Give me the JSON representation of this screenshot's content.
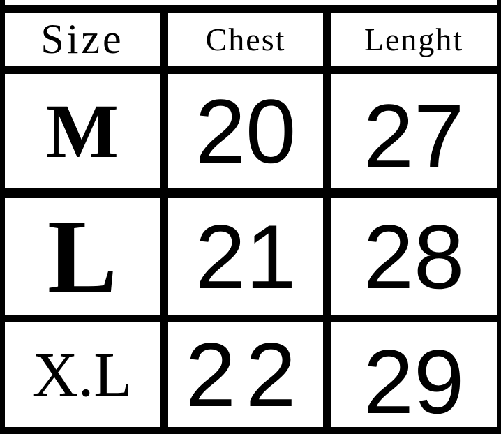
{
  "table": {
    "headers": [
      "Size",
      "Chest",
      "Lenght"
    ],
    "rows": [
      {
        "size": "M",
        "chest": "20",
        "length": "27"
      },
      {
        "size": "L",
        "chest": "21",
        "length": "28"
      },
      {
        "size": "X.L",
        "chest": "22",
        "length": "29"
      }
    ]
  }
}
